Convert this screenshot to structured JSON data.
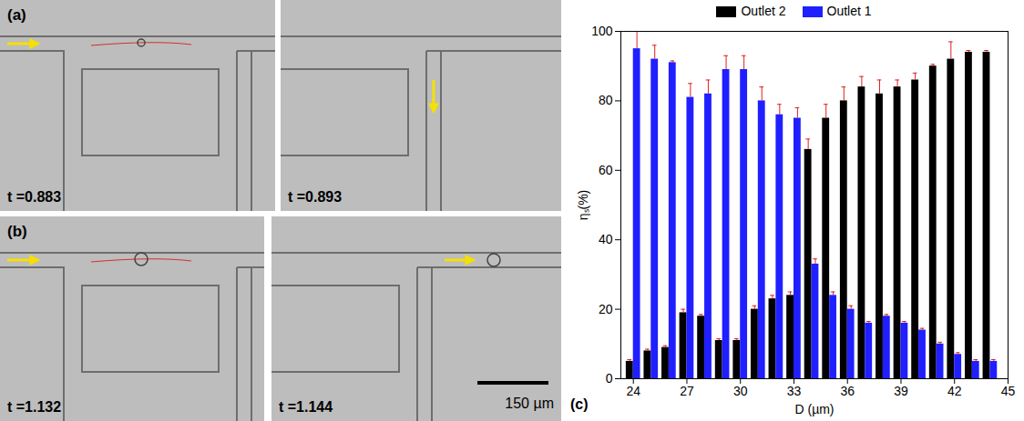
{
  "panels": [
    {
      "label": "(a)",
      "time": "t =0.883"
    },
    {
      "time": "t =0.893"
    },
    {
      "label": "(b)",
      "time": "t =1.132"
    },
    {
      "time": "t =1.144",
      "scale_bar": "150 µm"
    }
  ],
  "chart_data": {
    "type": "bar",
    "panel_label": "(c)",
    "x_label": "D (µm)",
    "y_label": "ηₛ(%)",
    "x": [
      24,
      25,
      26,
      27,
      28,
      29,
      30,
      31,
      32,
      33,
      34,
      35,
      36,
      37,
      38,
      39,
      40,
      41,
      42,
      43,
      44
    ],
    "series": [
      {
        "name": "Outlet 2",
        "color": "#000000",
        "values": [
          5,
          8,
          9,
          19,
          18,
          11,
          11,
          20,
          23,
          24,
          66,
          75,
          80,
          84,
          82,
          84,
          86,
          90,
          92,
          94,
          94
        ],
        "errors": [
          0.5,
          0.5,
          0.5,
          1,
          0.5,
          0.5,
          0.5,
          1,
          1,
          1,
          3,
          4,
          4,
          3,
          4,
          2,
          2,
          0.5,
          5,
          0.5,
          0.5
        ]
      },
      {
        "name": "Outlet 1",
        "color": "#1f1fff",
        "values": [
          95,
          92,
          91,
          81,
          82,
          89,
          89,
          80,
          76,
          75,
          33,
          24,
          20,
          16,
          18,
          16,
          14,
          10,
          7,
          5,
          5
        ],
        "errors": [
          5,
          4,
          0.5,
          4,
          4,
          4,
          4,
          4,
          3,
          3,
          1.5,
          1,
          1,
          0.5,
          0.5,
          0.5,
          0.5,
          0.5,
          0.5,
          0.5,
          0.5
        ]
      }
    ],
    "xlim": [
      23.3,
      45
    ],
    "xticks": [
      24,
      27,
      30,
      33,
      36,
      39,
      42,
      45
    ],
    "ylim": [
      0,
      100
    ],
    "yticks": [
      0,
      20,
      40,
      60,
      80,
      100
    ],
    "legend": "top",
    "grid": false
  }
}
